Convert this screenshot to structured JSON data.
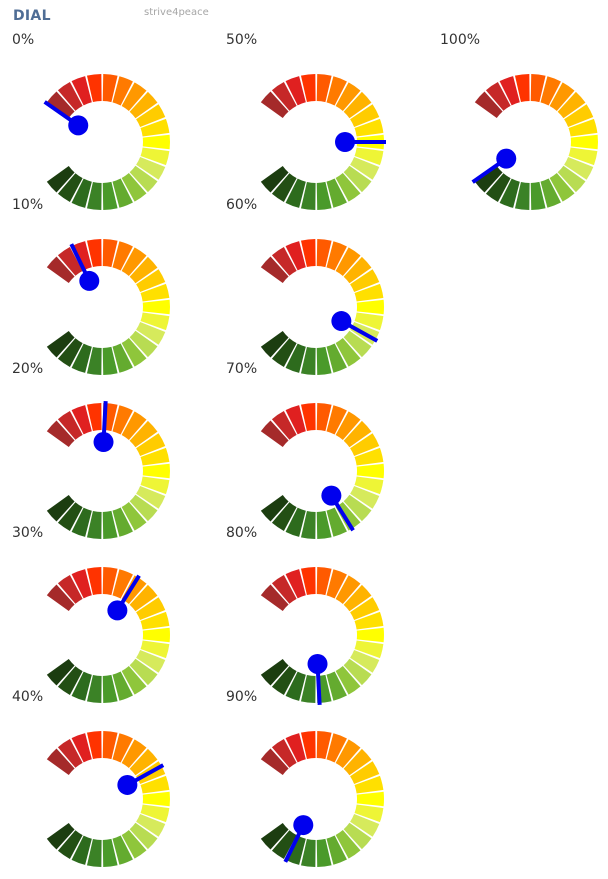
{
  "header": {
    "title": "DIAL",
    "credit": "strive4peace"
  },
  "colors": {
    "needle": "#0000ee",
    "title": "#4f6d95",
    "credit": "#a6a6a6",
    "segment_palette": [
      "#a52a2a",
      "#c62828",
      "#e02020",
      "#ff3300",
      "#ff5a00",
      "#ff7a00",
      "#ff9800",
      "#ffb300",
      "#ffcc00",
      "#ffe000",
      "#ffff00",
      "#eef536",
      "#d6ea5c",
      "#b8dc52",
      "#8fc63b",
      "#64ab2f",
      "#4a9a2a",
      "#3b8226",
      "#2d6b1d",
      "#234f14",
      "#1c3d10"
    ]
  },
  "chart_data": [
    {
      "type": "gauge",
      "label": "0%",
      "value": 0
    },
    {
      "type": "gauge",
      "label": "10%",
      "value": 10
    },
    {
      "type": "gauge",
      "label": "20%",
      "value": 20
    },
    {
      "type": "gauge",
      "label": "30%",
      "value": 30
    },
    {
      "type": "gauge",
      "label": "40%",
      "value": 40
    },
    {
      "type": "gauge",
      "label": "50%",
      "value": 50
    },
    {
      "type": "gauge",
      "label": "60%",
      "value": 60
    },
    {
      "type": "gauge",
      "label": "70%",
      "value": 70
    },
    {
      "type": "gauge",
      "label": "80%",
      "value": 80
    },
    {
      "type": "gauge",
      "label": "90%",
      "value": 90
    },
    {
      "type": "gauge",
      "label": "100%",
      "value": 100
    }
  ]
}
